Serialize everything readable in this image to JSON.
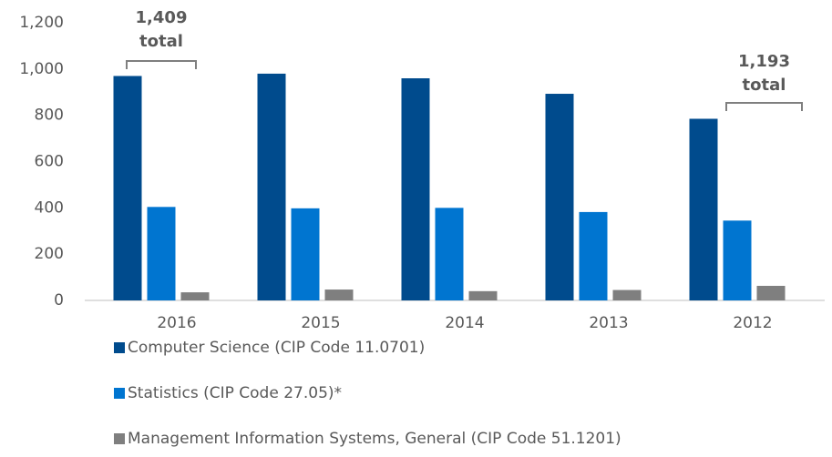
{
  "chart_data": {
    "type": "bar",
    "categories": [
      "2016",
      "2015",
      "2014",
      "2013",
      "2012"
    ],
    "series": [
      {
        "name": "Computer Science (CIP Code 11.0701)",
        "color": "#004b8d",
        "values": [
          970,
          980,
          960,
          893,
          785
        ]
      },
      {
        "name": "Statistics (CIP Code 27.05)*",
        "color": "#0075d0",
        "values": [
          404,
          398,
          400,
          382,
          345
        ]
      },
      {
        "name": "Management Information Systems, General (CIP Code 51.1201)",
        "color": "#7f7f7f",
        "values": [
          35,
          47,
          40,
          45,
          63
        ]
      }
    ],
    "ylim": [
      0,
      1200
    ],
    "yticks": [
      0,
      200,
      400,
      600,
      800,
      {
        "value": 1000,
        "label": "1,000"
      },
      {
        "value": 1200,
        "label": "1,200"
      }
    ],
    "grid": false,
    "annotations": [
      [
        "1,409",
        "total"
      ],
      [
        "1,193",
        "total"
      ]
    ]
  }
}
